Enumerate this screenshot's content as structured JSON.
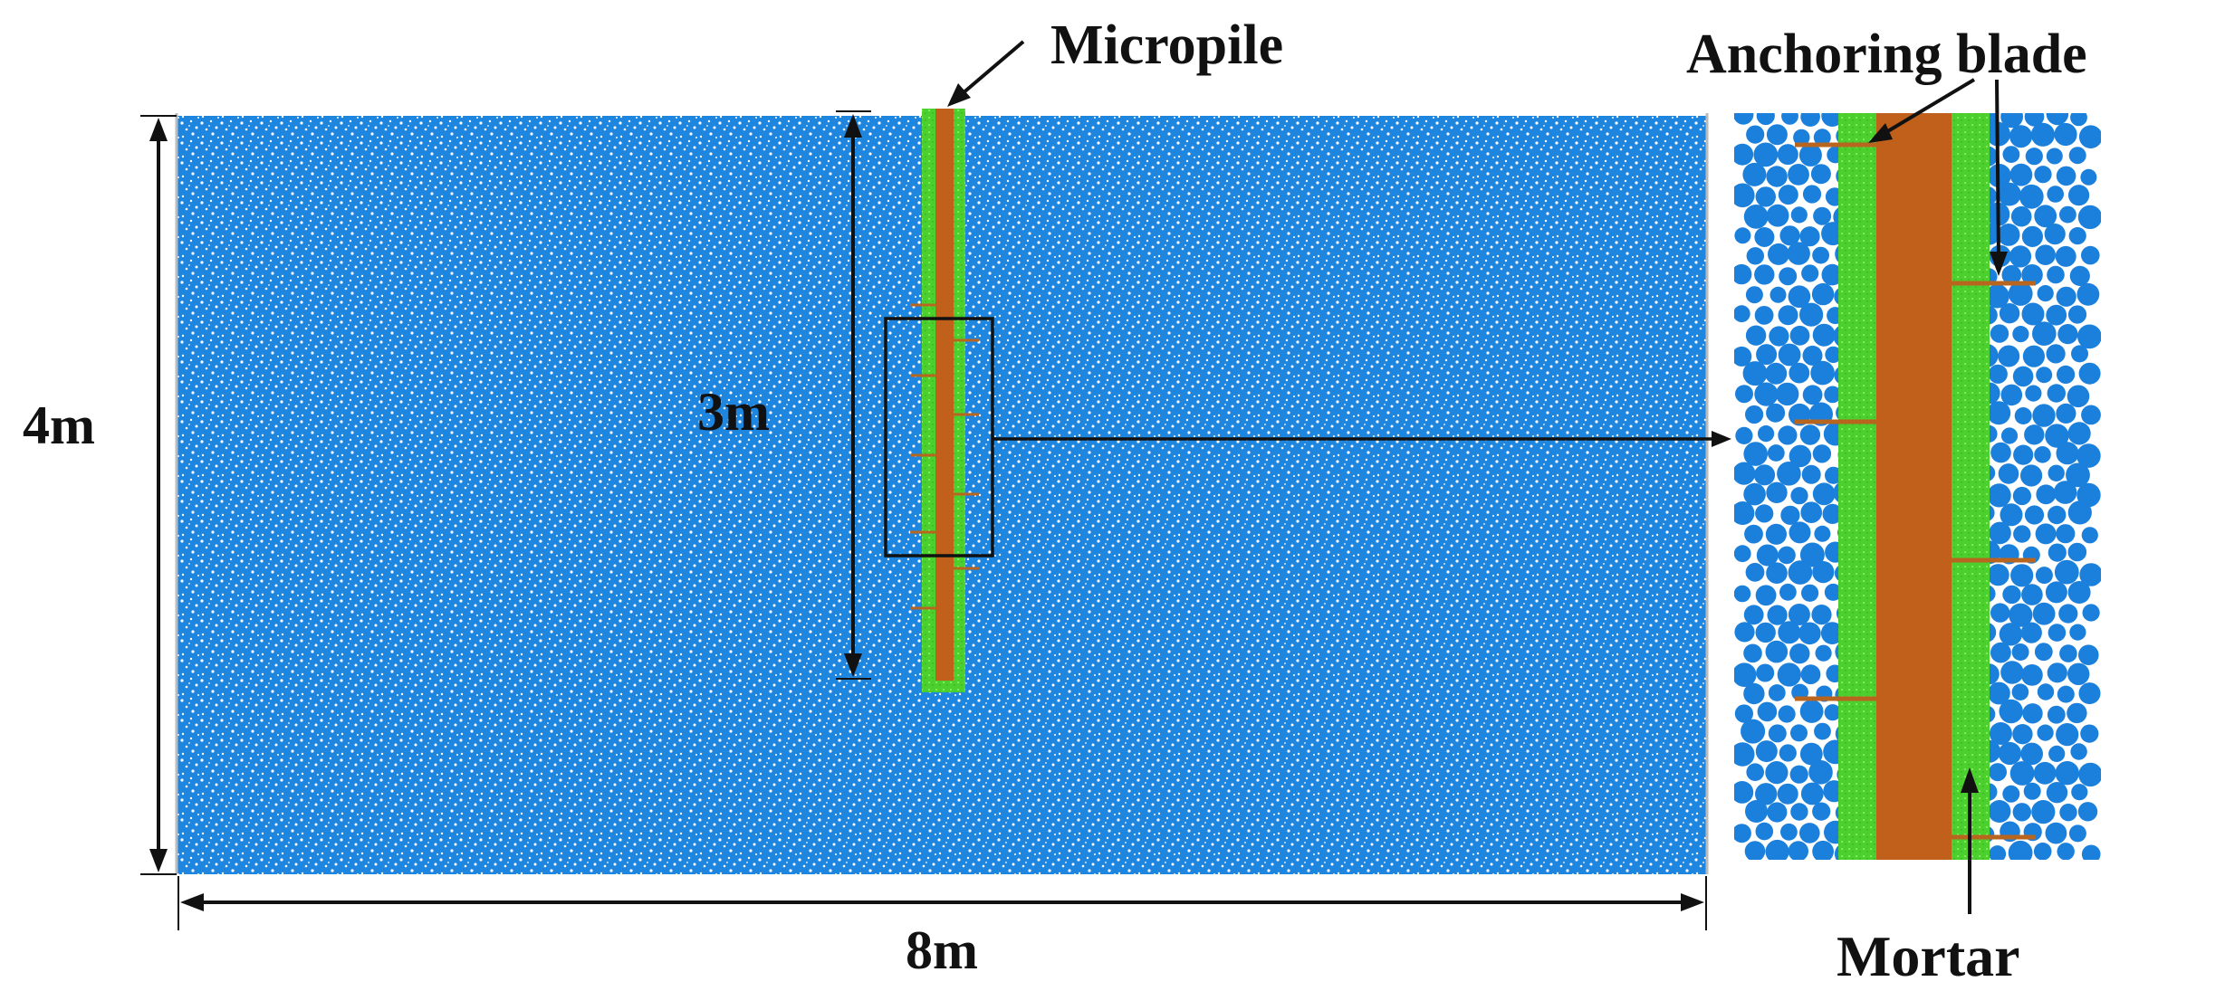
{
  "labels": {
    "micropile": "Micropile",
    "anchoring_blade": "Anchoring blade",
    "mortar": "Mortar",
    "height": "4m",
    "width": "8m",
    "pile_length": "3m"
  },
  "colors": {
    "soil": "#1f86e0",
    "soil_speckle": "#ffffff",
    "particle": "#1b7fdc",
    "mortar": "#4cd02e",
    "mortar_dot": "#7ee85a",
    "pile": "#c0601a",
    "blade": "#b8651f",
    "ink": "#111111"
  }
}
